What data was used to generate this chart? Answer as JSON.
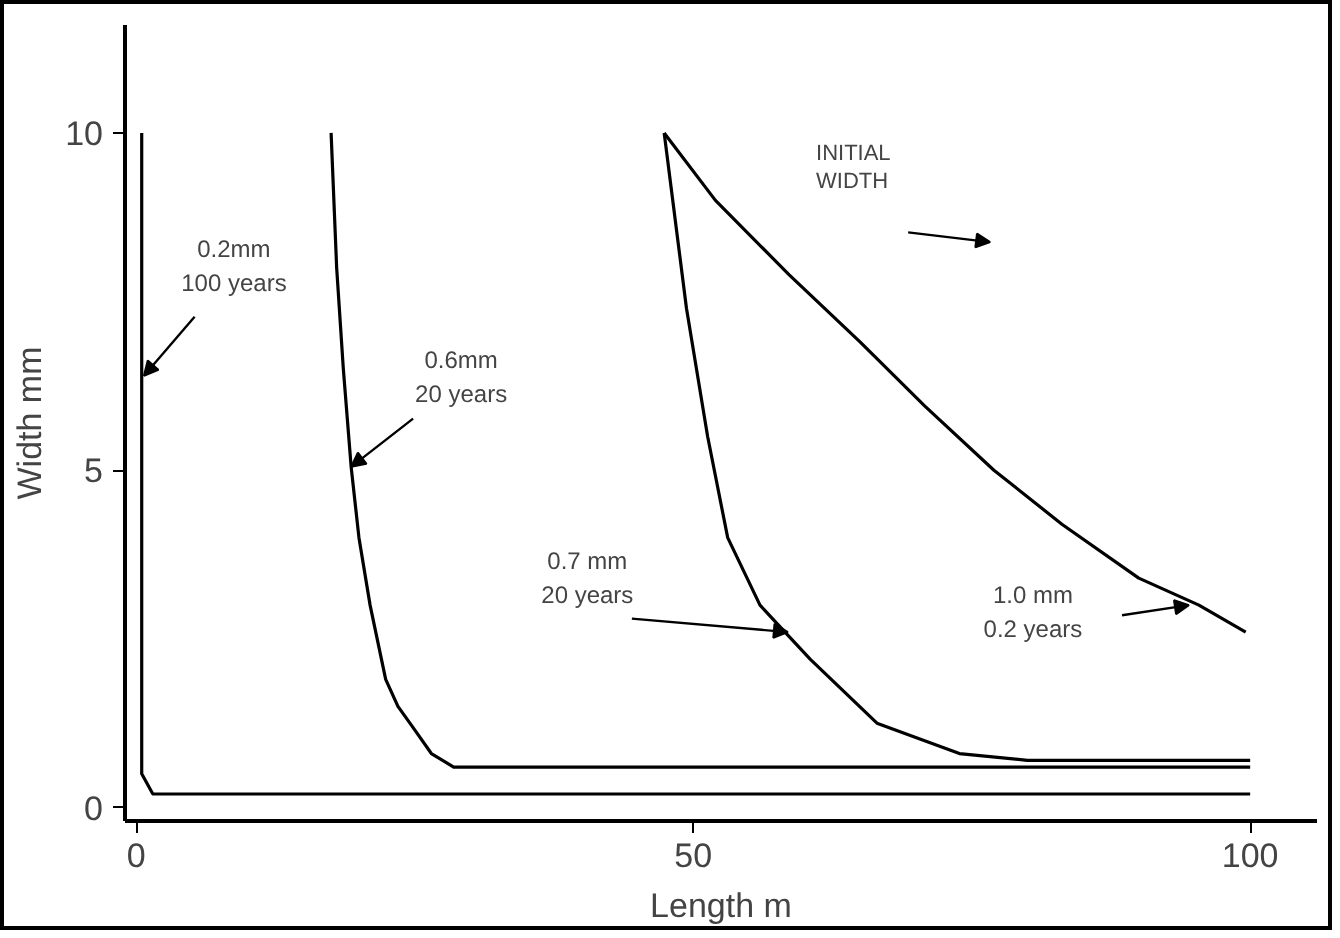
{
  "chart_data": {
    "type": "line",
    "xlabel": "Length m",
    "ylabel": "Width mm",
    "xlim": [
      -1,
      106
    ],
    "ylim": [
      -0.2,
      11.6
    ],
    "xticks": [
      0,
      50,
      100
    ],
    "yticks": [
      0,
      5,
      10
    ],
    "grid": false,
    "series": [
      {
        "color": "#000000",
        "x": [
          0.5,
          0.5,
          1.5,
          100
        ],
        "values": [
          10,
          0.5,
          0.2,
          0.2
        ]
      },
      {
        "color": "#000000",
        "x": [
          17.5,
          18.0,
          18.6,
          19.3,
          20.0,
          21.0,
          22.4,
          23.5,
          24.8,
          26.5,
          28.5,
          100
        ],
        "values": [
          10,
          8,
          6.5,
          5.05,
          4,
          3,
          1.9,
          1.5,
          1.2,
          0.8,
          0.6,
          0.6
        ]
      },
      {
        "color": "#000000",
        "x": [
          47.4,
          49.4,
          51.3,
          53.1,
          56.0,
          60.5,
          66.5,
          73.9,
          80,
          100
        ],
        "values": [
          10,
          7.4,
          5.5,
          4.0,
          3.0,
          2.2,
          1.25,
          0.8,
          0.7,
          0.7
        ]
      },
      {
        "color": "#000000",
        "x": [
          47.4,
          52,
          58.6,
          65,
          70.8,
          77,
          83.1,
          90,
          95.4,
          99.6
        ],
        "values": [
          10,
          9,
          7.9,
          6.9,
          5.95,
          5.0,
          4.2,
          3.4,
          3.0,
          2.6
        ]
      }
    ],
    "annotations": [
      {
        "text": "0.2mm\n100 years",
        "x": 0.7,
        "y": 6.4
      },
      {
        "text": "0.6mm\n20 years",
        "x": 19.3,
        "y": 5.05
      },
      {
        "text": "0.7 mm\n20 years",
        "x": 58.5,
        "y": 2.6
      },
      "1.0 mm\n0.2 years",
      "INITIAL\nWIDTH"
    ]
  }
}
